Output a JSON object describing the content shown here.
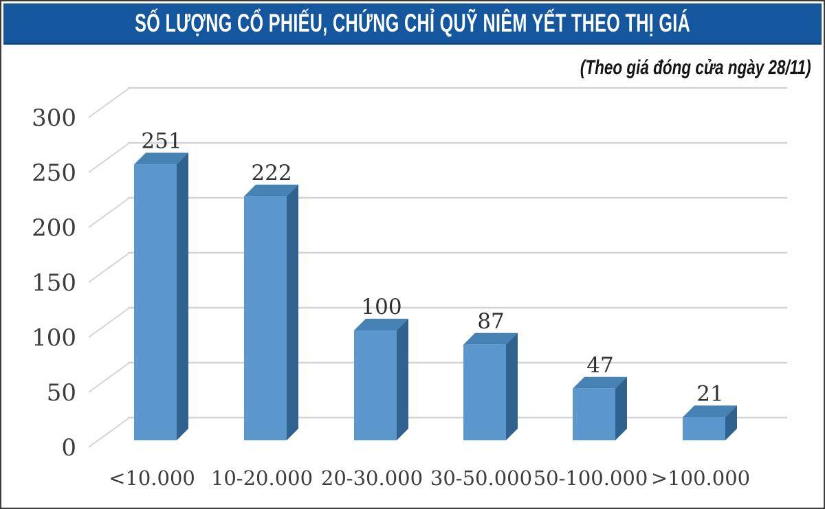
{
  "header": {
    "title": "SỐ LƯỢNG CỔ PHIẾU, CHỨNG CHỈ QUỸ NIÊM YẾT THEO THỊ GIÁ",
    "subtitle": "(Theo giá đóng cửa ngày 28/11)"
  },
  "colors": {
    "banner_bg": "#15579E",
    "banner_text": "#FFFFFF",
    "bar_front": "#5B97CC",
    "bar_top": "#4682B4",
    "bar_side": "#2F628F",
    "gridline": "#D3D3D3",
    "axis_text": "#3C3C3C",
    "value_text": "#303030",
    "frame_border": "#3C3C3C"
  },
  "chart_data": {
    "type": "bar",
    "style": "pseudo-3d-column",
    "title": "SỐ LƯỢNG CỔ PHIẾU, CHỨNG CHỈ QUỸ NIÊM YẾT THEO THỊ GIÁ",
    "subtitle": "(Theo giá đóng cửa ngày 28/11)",
    "categories": [
      "<10.000",
      "10-20.000",
      "20-30.000",
      "30-50.000",
      "50-100.000",
      ">100.000"
    ],
    "values": [
      251,
      222,
      100,
      87,
      47,
      21
    ],
    "value_labels_shown": true,
    "xlabel": "",
    "ylabel": "",
    "ylim": [
      0,
      300
    ],
    "yticks": [
      0,
      50,
      100,
      150,
      200,
      250,
      300
    ],
    "grid": true,
    "legend": false
  }
}
